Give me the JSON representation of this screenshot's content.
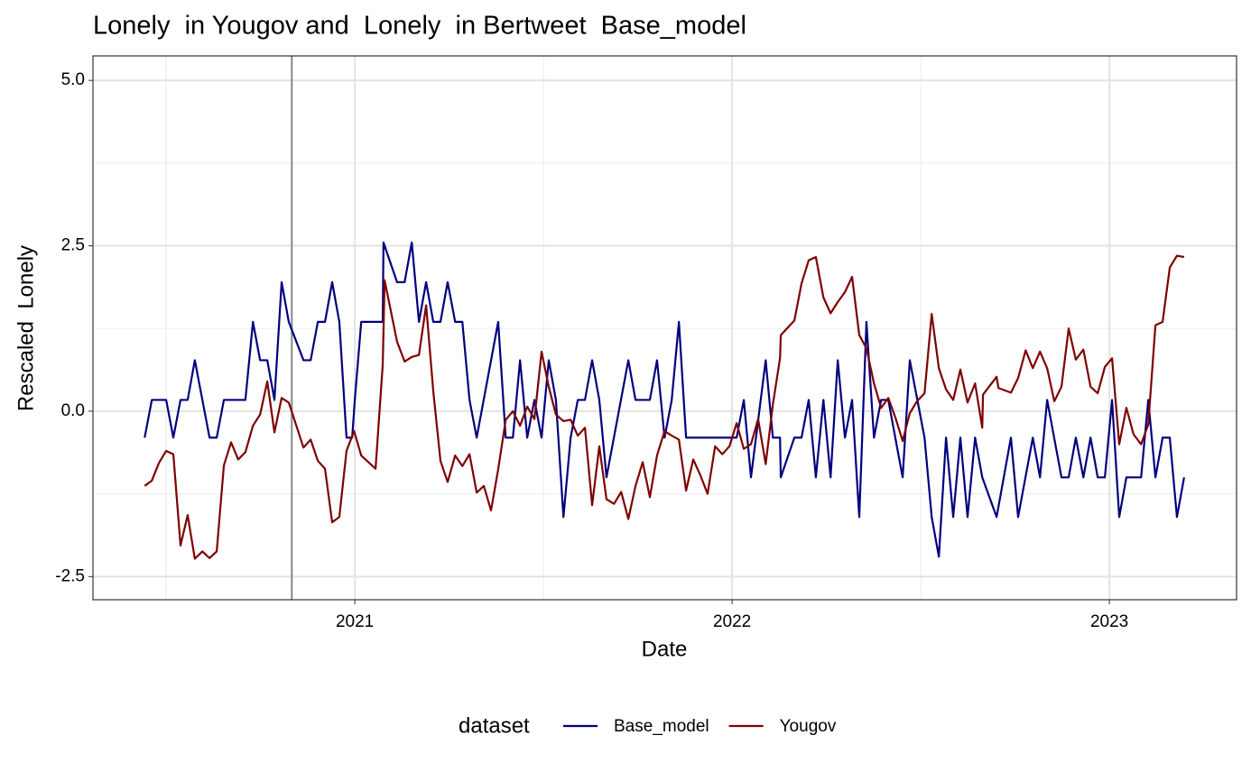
{
  "chart_data": {
    "type": "line",
    "title": "Lonely  in Yougov and  Lonely  in Bertweet  Base_model",
    "x_label": "Date",
    "y_label": "Rescaled  Lonely",
    "legend_title": "dataset",
    "legend": "bottom",
    "grid": true,
    "xlim": [
      2020.306,
      2023.337
    ],
    "ylim": [
      -2.85,
      5.37
    ],
    "xticks": [
      2021,
      2022,
      2023
    ],
    "xminor": [
      2020.5,
      2021.5,
      2022.5
    ],
    "yticks": [
      {
        "value": -2.5,
        "label": "-2.5"
      },
      {
        "value": 0,
        "label": "0.0"
      },
      {
        "value": 2.5,
        "label": "2.5"
      },
      {
        "value": 5,
        "label": "5.0"
      }
    ],
    "yminor": [
      -1.25,
      1.25,
      3.75
    ],
    "vline": {
      "x": 2020.833,
      "color": "#888888"
    },
    "series": [
      {
        "name": "Base_model",
        "color": "#00007f",
        "x": [
          2020.443,
          2020.462,
          2020.5,
          2020.519,
          2020.538,
          2020.557,
          2020.576,
          2020.615,
          2020.634,
          2020.653,
          2020.71,
          2020.73,
          2020.749,
          2020.768,
          2020.787,
          2020.806,
          2020.825,
          2020.864,
          2020.883,
          2020.902,
          2020.921,
          2020.94,
          2020.959,
          2020.978,
          2020.993,
          2021.0,
          2021.017,
          2021.074,
          2021.076,
          2021.112,
          2021.132,
          2021.151,
          2021.17,
          2021.189,
          2021.208,
          2021.227,
          2021.246,
          2021.266,
          2021.285,
          2021.304,
          2021.323,
          2021.38,
          2021.4,
          2021.419,
          2021.438,
          2021.457,
          2021.476,
          2021.495,
          2021.514,
          2021.533,
          2021.553,
          2021.572,
          2021.591,
          2021.61,
          2021.629,
          2021.648,
          2021.667,
          2021.725,
          2021.744,
          2021.782,
          2021.801,
          2021.821,
          2021.84,
          2021.859,
          2021.878,
          2022.012,
          2022.031,
          2022.05,
          2022.089,
          2022.108,
          2022.127,
          2022.129,
          2022.165,
          2022.184,
          2022.203,
          2022.222,
          2022.242,
          2022.261,
          2022.28,
          2022.299,
          2022.318,
          2022.337,
          2022.356,
          2022.376,
          2022.395,
          2022.414,
          2022.452,
          2022.471,
          2022.51,
          2022.529,
          2022.548,
          2022.567,
          2022.586,
          2022.605,
          2022.624,
          2022.644,
          2022.663,
          2022.701,
          2022.739,
          2022.758,
          2022.797,
          2022.816,
          2022.835,
          2022.873,
          2022.892,
          2022.911,
          2022.931,
          2022.95,
          2022.969,
          2022.988,
          2023.007,
          2023.026,
          2023.045,
          2023.084,
          2023.103,
          2023.122,
          2023.141,
          2023.16,
          2023.179,
          2023.198
        ],
        "values": [
          -0.4,
          0.17,
          0.17,
          -0.4,
          0.17,
          0.17,
          0.77,
          -0.4,
          -0.4,
          0.17,
          0.17,
          1.35,
          0.77,
          0.77,
          0.17,
          1.95,
          1.35,
          0.77,
          0.77,
          1.35,
          1.35,
          1.95,
          1.35,
          -0.4,
          -0.4,
          0.17,
          1.35,
          1.35,
          2.55,
          1.95,
          1.95,
          2.55,
          1.35,
          1.95,
          1.35,
          1.35,
          1.95,
          1.35,
          1.35,
          0.17,
          -0.4,
          1.35,
          -0.4,
          -0.4,
          0.77,
          -0.4,
          0.17,
          -0.4,
          0.77,
          0.17,
          -1.6,
          -0.4,
          0.17,
          0.17,
          0.77,
          0.17,
          -1.0,
          0.77,
          0.17,
          0.17,
          0.77,
          -0.4,
          0.17,
          1.35,
          -0.4,
          -0.4,
          0.17,
          -1.0,
          0.77,
          -0.4,
          -0.4,
          -1.0,
          -0.4,
          -0.4,
          0.17,
          -1.0,
          0.17,
          -1.0,
          0.77,
          -0.4,
          0.17,
          -1.6,
          1.35,
          -0.4,
          0.17,
          0.17,
          -1.0,
          0.77,
          -0.4,
          -1.6,
          -2.2,
          -0.4,
          -1.6,
          -0.4,
          -1.6,
          -0.4,
          -1.0,
          -1.6,
          -0.4,
          -1.6,
          -0.4,
          -1.0,
          0.17,
          -1.0,
          -1.0,
          -0.4,
          -1.0,
          -0.4,
          -1.0,
          -1.0,
          0.17,
          -1.6,
          -1.0,
          -1.0,
          0.17,
          -1.0,
          -0.4,
          -0.4,
          -1.6,
          -1.0
        ]
      },
      {
        "name": "Yougov",
        "color": "#7f0000",
        "x": [
          2020.443,
          2020.462,
          2020.481,
          2020.5,
          2020.519,
          2020.538,
          2020.557,
          2020.576,
          2020.596,
          2020.615,
          2020.634,
          2020.653,
          2020.672,
          2020.691,
          2020.71,
          2020.73,
          2020.749,
          2020.768,
          2020.787,
          2020.806,
          2020.825,
          2020.864,
          2020.883,
          2020.902,
          2020.921,
          2020.94,
          2020.959,
          2020.978,
          2020.998,
          2021.017,
          2021.055,
          2021.074,
          2021.079,
          2021.112,
          2021.132,
          2021.151,
          2021.17,
          2021.189,
          2021.208,
          2021.227,
          2021.246,
          2021.266,
          2021.285,
          2021.304,
          2021.323,
          2021.342,
          2021.361,
          2021.38,
          2021.4,
          2021.419,
          2021.438,
          2021.457,
          2021.476,
          2021.495,
          2021.514,
          2021.533,
          2021.553,
          2021.572,
          2021.591,
          2021.61,
          2021.629,
          2021.648,
          2021.667,
          2021.687,
          2021.706,
          2021.725,
          2021.744,
          2021.763,
          2021.782,
          2021.801,
          2021.821,
          2021.84,
          2021.859,
          2021.878,
          2021.897,
          2021.916,
          2021.935,
          2021.955,
          2021.974,
          2021.993,
          2022.012,
          2022.031,
          2022.05,
          2022.069,
          2022.089,
          2022.108,
          2022.127,
          2022.129,
          2022.165,
          2022.184,
          2022.203,
          2022.222,
          2022.242,
          2022.261,
          2022.28,
          2022.299,
          2022.318,
          2022.337,
          2022.356,
          2022.376,
          2022.395,
          2022.414,
          2022.433,
          2022.452,
          2022.471,
          2022.49,
          2022.51,
          2022.529,
          2022.548,
          2022.567,
          2022.586,
          2022.605,
          2022.624,
          2022.644,
          2022.663,
          2022.665,
          2022.701,
          2022.706,
          2022.739,
          2022.758,
          2022.778,
          2022.797,
          2022.816,
          2022.835,
          2022.854,
          2022.873,
          2022.892,
          2022.911,
          2022.931,
          2022.95,
          2022.969,
          2022.988,
          2023.007,
          2023.026,
          2023.045,
          2023.064,
          2023.084,
          2023.103,
          2023.122,
          2023.141,
          2023.16,
          2023.179,
          2023.198
        ],
        "values": [
          -1.13,
          -1.05,
          -0.78,
          -0.6,
          -0.65,
          -2.03,
          -1.57,
          -2.23,
          -2.12,
          -2.22,
          -2.12,
          -0.82,
          -0.47,
          -0.73,
          -0.62,
          -0.22,
          -0.05,
          0.45,
          -0.32,
          0.2,
          0.13,
          -0.55,
          -0.43,
          -0.75,
          -0.87,
          -1.68,
          -1.6,
          -0.6,
          -0.3,
          -0.67,
          -0.87,
          0.7,
          1.98,
          1.05,
          0.75,
          0.82,
          0.85,
          1.6,
          0.3,
          -0.75,
          -1.07,
          -0.67,
          -0.83,
          -0.65,
          -1.23,
          -1.13,
          -1.5,
          -0.88,
          -0.13,
          0.0,
          -0.22,
          0.07,
          -0.12,
          0.9,
          0.37,
          -0.05,
          -0.15,
          -0.13,
          -0.37,
          -0.25,
          -1.42,
          -0.53,
          -1.33,
          -1.4,
          -1.22,
          -1.63,
          -1.13,
          -0.77,
          -1.3,
          -0.67,
          -0.3,
          -0.37,
          -0.43,
          -1.2,
          -0.73,
          -0.97,
          -1.25,
          -0.53,
          -0.65,
          -0.53,
          -0.18,
          -0.57,
          -0.5,
          -0.12,
          -0.8,
          0.1,
          0.8,
          1.15,
          1.37,
          1.93,
          2.28,
          2.33,
          1.72,
          1.48,
          1.65,
          1.8,
          2.03,
          1.15,
          0.95,
          0.42,
          0.05,
          0.2,
          -0.1,
          -0.45,
          -0.03,
          0.15,
          0.27,
          1.47,
          0.65,
          0.33,
          0.17,
          0.63,
          0.13,
          0.42,
          -0.25,
          0.25,
          0.52,
          0.35,
          0.28,
          0.5,
          0.92,
          0.65,
          0.9,
          0.65,
          0.15,
          0.37,
          1.25,
          0.78,
          0.93,
          0.37,
          0.27,
          0.67,
          0.8,
          -0.5,
          0.05,
          -0.35,
          -0.5,
          -0.2,
          1.3,
          1.35,
          2.17,
          2.35,
          2.33
        ]
      }
    ]
  }
}
